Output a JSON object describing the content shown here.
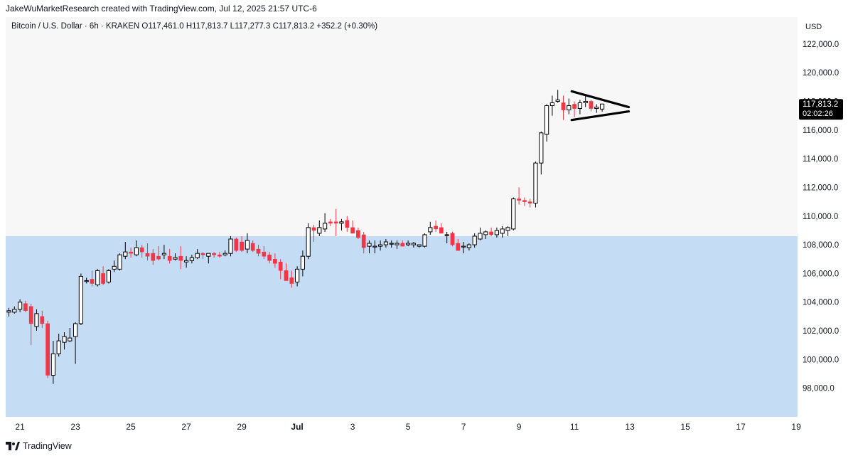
{
  "header": {
    "attribution": "JakeWuMarketResearch created with TradingView.com, Jul 12, 2025 21:57 UTC-6"
  },
  "legend": {
    "text": "Bitcoin / U.S. Dollar · 6h · KRAKEN  O117,461.0  H117,813.7  L117,277.3  C117,813.2  +352.2 (+0.30%)"
  },
  "axis": {
    "currency": "USD"
  },
  "price_tag": {
    "price": "117,813.2",
    "countdown": "02:02:26"
  },
  "footer": {
    "brand": "TradingView"
  },
  "colors": {
    "up_body": "#ffffff",
    "up_border": "#000000",
    "down": "#f23645",
    "zone": "#c5dcf5",
    "background": "#f7f7f7"
  },
  "chart_data": {
    "type": "candlestick",
    "title": "Bitcoin / U.S. Dollar · 6h · KRAKEN",
    "ylabel": "USD",
    "ylim": [
      96000,
      124000
    ],
    "y_ticks": [
      98000,
      100000,
      102000,
      104000,
      106000,
      108000,
      110000,
      112000,
      114000,
      116000,
      118000,
      120000,
      122000
    ],
    "y_tick_labels": [
      "98,000.0",
      "100,000.0",
      "102,000.0",
      "104,000.0",
      "106,000.0",
      "108,000.0",
      "110,000.0",
      "112,000.0",
      "114,000.0",
      "116,000.0",
      "118,000.0",
      "120,000.0",
      "122,000.0"
    ],
    "x_tick_labels": [
      {
        "i": 2,
        "label": "21"
      },
      {
        "i": 12,
        "label": "23"
      },
      {
        "i": 22,
        "label": "25"
      },
      {
        "i": 32,
        "label": "27"
      },
      {
        "i": 42,
        "label": "29"
      },
      {
        "i": 52,
        "label": "Jul"
      },
      {
        "i": 62,
        "label": "3"
      },
      {
        "i": 72,
        "label": "5"
      },
      {
        "i": 82,
        "label": "7"
      },
      {
        "i": 92,
        "label": "9"
      },
      {
        "i": 102,
        "label": "11"
      },
      {
        "i": 112,
        "label": "13"
      },
      {
        "i": 122,
        "label": "15"
      },
      {
        "i": 132,
        "label": "17"
      },
      {
        "i": 142,
        "label": "19"
      }
    ],
    "candles": [
      {
        "o": 103300,
        "h": 103600,
        "l": 103000,
        "c": 103400
      },
      {
        "o": 103300,
        "h": 103700,
        "l": 103200,
        "c": 103500
      },
      {
        "o": 103500,
        "h": 104200,
        "l": 103300,
        "c": 104000
      },
      {
        "o": 103900,
        "h": 104100,
        "l": 103300,
        "c": 103400
      },
      {
        "o": 103700,
        "h": 103900,
        "l": 101000,
        "c": 102500
      },
      {
        "o": 102300,
        "h": 103500,
        "l": 102000,
        "c": 103200
      },
      {
        "o": 103000,
        "h": 103400,
        "l": 102200,
        "c": 102500
      },
      {
        "o": 102500,
        "h": 102700,
        "l": 98700,
        "c": 98900
      },
      {
        "o": 98900,
        "h": 101300,
        "l": 98300,
        "c": 100400
      },
      {
        "o": 100400,
        "h": 101800,
        "l": 100200,
        "c": 101300
      },
      {
        "o": 101200,
        "h": 101900,
        "l": 100700,
        "c": 101600
      },
      {
        "o": 101300,
        "h": 102200,
        "l": 101200,
        "c": 101500
      },
      {
        "o": 101600,
        "h": 102600,
        "l": 99700,
        "c": 102500
      },
      {
        "o": 102500,
        "h": 106000,
        "l": 102400,
        "c": 105800
      },
      {
        "o": 105500,
        "h": 105700,
        "l": 105300,
        "c": 105500
      },
      {
        "o": 105600,
        "h": 106200,
        "l": 105100,
        "c": 105300
      },
      {
        "o": 105200,
        "h": 106300,
        "l": 105100,
        "c": 106200
      },
      {
        "o": 106000,
        "h": 106500,
        "l": 105200,
        "c": 105300
      },
      {
        "o": 105400,
        "h": 106300,
        "l": 105300,
        "c": 106200
      },
      {
        "o": 106300,
        "h": 106900,
        "l": 106100,
        "c": 106500
      },
      {
        "o": 106300,
        "h": 107400,
        "l": 106200,
        "c": 107300
      },
      {
        "o": 107200,
        "h": 108200,
        "l": 107000,
        "c": 107500
      },
      {
        "o": 107500,
        "h": 107800,
        "l": 107100,
        "c": 107400
      },
      {
        "o": 107300,
        "h": 108300,
        "l": 107200,
        "c": 107800
      },
      {
        "o": 107800,
        "h": 108000,
        "l": 107100,
        "c": 107500
      },
      {
        "o": 107400,
        "h": 108100,
        "l": 106900,
        "c": 107200
      },
      {
        "o": 107400,
        "h": 107700,
        "l": 106600,
        "c": 106900
      },
      {
        "o": 107200,
        "h": 107900,
        "l": 106900,
        "c": 107000
      },
      {
        "o": 107300,
        "h": 108000,
        "l": 107000,
        "c": 107400
      },
      {
        "o": 107200,
        "h": 107700,
        "l": 106700,
        "c": 106900
      },
      {
        "o": 107000,
        "h": 107400,
        "l": 106900,
        "c": 107100
      },
      {
        "o": 107200,
        "h": 107900,
        "l": 106300,
        "c": 106900
      },
      {
        "o": 106800,
        "h": 107200,
        "l": 106400,
        "c": 106900
      },
      {
        "o": 106900,
        "h": 107300,
        "l": 106700,
        "c": 107100
      },
      {
        "o": 107100,
        "h": 107700,
        "l": 107000,
        "c": 107400
      },
      {
        "o": 107400,
        "h": 107500,
        "l": 107000,
        "c": 107300
      },
      {
        "o": 107200,
        "h": 107400,
        "l": 106700,
        "c": 107400
      },
      {
        "o": 107400,
        "h": 107500,
        "l": 107100,
        "c": 107300
      },
      {
        "o": 107300,
        "h": 107500,
        "l": 107100,
        "c": 107200
      },
      {
        "o": 107300,
        "h": 107600,
        "l": 107200,
        "c": 107400
      },
      {
        "o": 107400,
        "h": 108600,
        "l": 107200,
        "c": 108400
      },
      {
        "o": 108400,
        "h": 108500,
        "l": 107500,
        "c": 107600
      },
      {
        "o": 108200,
        "h": 108600,
        "l": 107500,
        "c": 107600
      },
      {
        "o": 107700,
        "h": 108800,
        "l": 107400,
        "c": 108300
      },
      {
        "o": 108100,
        "h": 108300,
        "l": 107500,
        "c": 107600
      },
      {
        "o": 107700,
        "h": 108000,
        "l": 107200,
        "c": 107400
      },
      {
        "o": 107500,
        "h": 107900,
        "l": 107000,
        "c": 107200
      },
      {
        "o": 107300,
        "h": 107500,
        "l": 106700,
        "c": 106900
      },
      {
        "o": 107000,
        "h": 107400,
        "l": 106400,
        "c": 106700
      },
      {
        "o": 106800,
        "h": 107000,
        "l": 105600,
        "c": 106200
      },
      {
        "o": 106200,
        "h": 106700,
        "l": 105500,
        "c": 105500
      },
      {
        "o": 105700,
        "h": 106200,
        "l": 105000,
        "c": 105300
      },
      {
        "o": 105400,
        "h": 106500,
        "l": 105100,
        "c": 106300
      },
      {
        "o": 106300,
        "h": 107600,
        "l": 105800,
        "c": 107200
      },
      {
        "o": 107200,
        "h": 109500,
        "l": 107000,
        "c": 109200
      },
      {
        "o": 109200,
        "h": 109400,
        "l": 108200,
        "c": 109000
      },
      {
        "o": 108800,
        "h": 109700,
        "l": 108600,
        "c": 109200
      },
      {
        "o": 109100,
        "h": 110200,
        "l": 108900,
        "c": 109500
      },
      {
        "o": 109600,
        "h": 109800,
        "l": 109300,
        "c": 109500
      },
      {
        "o": 109600,
        "h": 110500,
        "l": 108600,
        "c": 109500
      },
      {
        "o": 109500,
        "h": 109800,
        "l": 109000,
        "c": 109600
      },
      {
        "o": 109700,
        "h": 110000,
        "l": 108900,
        "c": 109200
      },
      {
        "o": 109200,
        "h": 109700,
        "l": 108800,
        "c": 108800
      },
      {
        "o": 109000,
        "h": 109200,
        "l": 108400,
        "c": 108500
      },
      {
        "o": 108700,
        "h": 108900,
        "l": 107400,
        "c": 107800
      },
      {
        "o": 107900,
        "h": 108300,
        "l": 107400,
        "c": 108100
      },
      {
        "o": 107900,
        "h": 108300,
        "l": 107400,
        "c": 107900
      },
      {
        "o": 107900,
        "h": 108300,
        "l": 107600,
        "c": 108000
      },
      {
        "o": 108000,
        "h": 108400,
        "l": 107800,
        "c": 108200
      },
      {
        "o": 108100,
        "h": 108300,
        "l": 107800,
        "c": 108100
      },
      {
        "o": 108000,
        "h": 108300,
        "l": 107700,
        "c": 108100
      },
      {
        "o": 108100,
        "h": 108300,
        "l": 107900,
        "c": 107900
      },
      {
        "o": 108000,
        "h": 108300,
        "l": 107900,
        "c": 108100
      },
      {
        "o": 108000,
        "h": 108200,
        "l": 107800,
        "c": 108100
      },
      {
        "o": 107900,
        "h": 108000,
        "l": 107800,
        "c": 108000
      },
      {
        "o": 107900,
        "h": 108800,
        "l": 107800,
        "c": 108700
      },
      {
        "o": 108900,
        "h": 109600,
        "l": 108700,
        "c": 109200
      },
      {
        "o": 109300,
        "h": 109700,
        "l": 108900,
        "c": 109100
      },
      {
        "o": 109200,
        "h": 109500,
        "l": 108900,
        "c": 108800
      },
      {
        "o": 108700,
        "h": 108900,
        "l": 108100,
        "c": 108700
      },
      {
        "o": 108800,
        "h": 108900,
        "l": 107900,
        "c": 108000
      },
      {
        "o": 108100,
        "h": 108400,
        "l": 107600,
        "c": 107600
      },
      {
        "o": 107900,
        "h": 108200,
        "l": 107400,
        "c": 107900
      },
      {
        "o": 107800,
        "h": 108100,
        "l": 107600,
        "c": 108000
      },
      {
        "o": 108000,
        "h": 108800,
        "l": 107800,
        "c": 108600
      },
      {
        "o": 108400,
        "h": 109200,
        "l": 108300,
        "c": 108800
      },
      {
        "o": 108700,
        "h": 109000,
        "l": 108400,
        "c": 108900
      },
      {
        "o": 108900,
        "h": 109200,
        "l": 108600,
        "c": 108700
      },
      {
        "o": 108700,
        "h": 109200,
        "l": 108500,
        "c": 109000
      },
      {
        "o": 108800,
        "h": 109300,
        "l": 108500,
        "c": 109100
      },
      {
        "o": 109000,
        "h": 109300,
        "l": 108600,
        "c": 109200
      },
      {
        "o": 109100,
        "h": 111300,
        "l": 109000,
        "c": 111200
      },
      {
        "o": 111200,
        "h": 112000,
        "l": 110800,
        "c": 111100
      },
      {
        "o": 111100,
        "h": 111300,
        "l": 110700,
        "c": 111000
      },
      {
        "o": 111000,
        "h": 111200,
        "l": 110600,
        "c": 110900
      },
      {
        "o": 110900,
        "h": 113800,
        "l": 110600,
        "c": 113700
      },
      {
        "o": 113700,
        "h": 115900,
        "l": 112900,
        "c": 115800
      },
      {
        "o": 115700,
        "h": 117800,
        "l": 115200,
        "c": 117700
      },
      {
        "o": 117700,
        "h": 118400,
        "l": 117000,
        "c": 117900
      },
      {
        "o": 118000,
        "h": 118800,
        "l": 117900,
        "c": 118100
      },
      {
        "o": 117900,
        "h": 118400,
        "l": 116700,
        "c": 117400
      },
      {
        "o": 117400,
        "h": 118200,
        "l": 117100,
        "c": 117700
      },
      {
        "o": 117800,
        "h": 118000,
        "l": 116900,
        "c": 117500
      },
      {
        "o": 117500,
        "h": 118100,
        "l": 117100,
        "c": 117900
      },
      {
        "o": 117900,
        "h": 118400,
        "l": 117600,
        "c": 118000
      },
      {
        "o": 118000,
        "h": 118100,
        "l": 117300,
        "c": 117500
      },
      {
        "o": 117500,
        "h": 117800,
        "l": 117200,
        "c": 117600
      },
      {
        "o": 117461,
        "h": 117813.7,
        "l": 117277.3,
        "c": 117813.2
      }
    ],
    "zone": {
      "from": 96000,
      "to": 108600,
      "color": "#c5dcf5"
    },
    "triangle": {
      "upper": [
        [
          101.5,
          118700
        ],
        [
          111.8,
          117600
        ]
      ],
      "lower": [
        [
          101.5,
          116700
        ],
        [
          111.8,
          117300
        ]
      ]
    }
  }
}
